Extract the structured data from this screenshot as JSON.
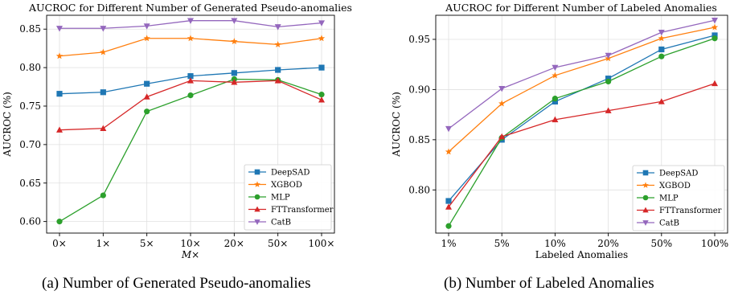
{
  "captions": {
    "a": "(a) Number of Generated Pseudo-anomalies",
    "b": "(b) Number of Labeled Anomalies"
  },
  "chart_data": [
    {
      "type": "line",
      "title": "AUCROC for Different Number of Generated Pseudo-anomalies",
      "xlabel": "M×",
      "ylabel": "AUCROC (%)",
      "categories": [
        "0×",
        "1×",
        "5×",
        "10×",
        "20×",
        "50×",
        "100×"
      ],
      "ylim": [
        0.585,
        0.868
      ],
      "yticks": [
        "0.60",
        "0.65",
        "0.70",
        "0.75",
        "0.80",
        "0.85"
      ],
      "grid": true,
      "legend": "bottom-right",
      "series": [
        {
          "name": "DeepSAD",
          "color": "#1f77b4",
          "marker": "square",
          "values": [
            0.766,
            0.768,
            0.779,
            0.789,
            0.793,
            0.797,
            0.8
          ]
        },
        {
          "name": "XGBOD",
          "color": "#ff7f0e",
          "marker": "star",
          "values": [
            0.815,
            0.82,
            0.838,
            0.838,
            0.834,
            0.83,
            0.838
          ]
        },
        {
          "name": "MLP",
          "color": "#2ca02c",
          "marker": "circle",
          "values": [
            0.6,
            0.634,
            0.743,
            0.764,
            0.785,
            0.784,
            0.765
          ]
        },
        {
          "name": "FTTransformer",
          "color": "#d62728",
          "marker": "triangle-up",
          "values": [
            0.719,
            0.721,
            0.762,
            0.783,
            0.781,
            0.783,
            0.758
          ]
        },
        {
          "name": "CatB",
          "color": "#9467bd",
          "marker": "triangle-down",
          "values": [
            0.851,
            0.851,
            0.854,
            0.861,
            0.861,
            0.853,
            0.858
          ]
        }
      ]
    },
    {
      "type": "line",
      "title": "AUCROC for Different Number of Labeled Anomalies",
      "xlabel": "Labeled Anomalies",
      "ylabel": "AUCROC (%)",
      "categories": [
        "1%",
        "5%",
        "10%",
        "20%",
        "50%",
        "100%"
      ],
      "ylim": [
        0.757,
        0.974
      ],
      "yticks": [
        "0.80",
        "0.85",
        "0.90",
        "0.95"
      ],
      "grid": true,
      "legend": "bottom-right",
      "series": [
        {
          "name": "DeepSAD",
          "color": "#1f77b4",
          "marker": "square",
          "values": [
            0.789,
            0.85,
            0.888,
            0.911,
            0.94,
            0.954
          ]
        },
        {
          "name": "XGBOD",
          "color": "#ff7f0e",
          "marker": "star",
          "values": [
            0.838,
            0.886,
            0.914,
            0.931,
            0.951,
            0.962
          ]
        },
        {
          "name": "MLP",
          "color": "#2ca02c",
          "marker": "circle",
          "values": [
            0.764,
            0.852,
            0.891,
            0.908,
            0.933,
            0.951
          ]
        },
        {
          "name": "FTTransformer",
          "color": "#d62728",
          "marker": "triangle-up",
          "values": [
            0.783,
            0.853,
            0.87,
            0.879,
            0.888,
            0.906
          ]
        },
        {
          "name": "CatB",
          "color": "#9467bd",
          "marker": "triangle-down",
          "values": [
            0.861,
            0.901,
            0.922,
            0.934,
            0.957,
            0.969
          ]
        }
      ]
    }
  ]
}
